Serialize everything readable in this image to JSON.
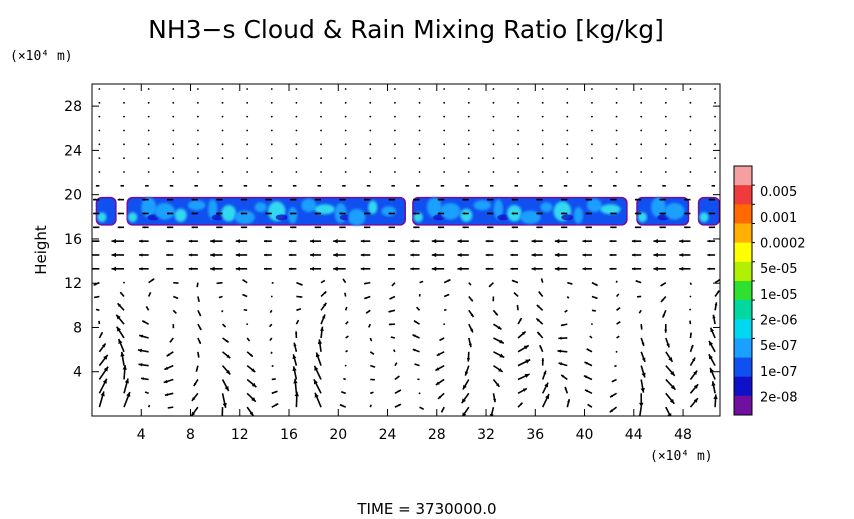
{
  "chart_data": {
    "type": "heatmap",
    "title": "NH3−s Cloud & Rain Mixing Ratio [kg/kg]",
    "ylabel": "Height",
    "y_unit": "(×10⁴ m)",
    "x_unit": "(×10⁴ m)",
    "footer": "TIME = 3730000.0",
    "xlim": [
      0,
      51
    ],
    "ylim": [
      0,
      30
    ],
    "x_ticks": [
      "4",
      "8",
      "12",
      "16",
      "20",
      "24",
      "28",
      "32",
      "36",
      "40",
      "44",
      "48"
    ],
    "y_ticks": [
      "4",
      "8",
      "12",
      "16",
      "20",
      "24",
      "28"
    ],
    "x_tick_values": [
      4,
      8,
      12,
      16,
      20,
      24,
      28,
      32,
      36,
      40,
      44,
      48
    ],
    "y_tick_values": [
      4,
      8,
      12,
      16,
      20,
      24,
      28
    ],
    "colorbar": {
      "labels": [
        "0.005",
        "0.001",
        "0.0002",
        "5e-05",
        "1e-05",
        "2e-06",
        "5e-07",
        "1e-07",
        "2e-08"
      ],
      "colors": [
        "#f4a0a0",
        "#ef3b3b",
        "#ff6a00",
        "#ffb000",
        "#ffff00",
        "#b0f000",
        "#30e030",
        "#00d8a0",
        "#00d8f0",
        "#1ca0ff",
        "#1050f0",
        "#1010c8",
        "#7010a0"
      ]
    },
    "cloud_layer": {
      "y_range": [
        17.2,
        19.8
      ],
      "segments": [
        [
          0.3,
          2.0
        ],
        [
          2.8,
          25.5
        ],
        [
          26.0,
          43.5
        ],
        [
          44.2,
          48.5
        ],
        [
          49.2,
          51.0
        ]
      ],
      "colors": {
        "edge": "#7010a0",
        "base": "#1050f0",
        "mid": "#1ca0ff",
        "core": "#30d8f0",
        "dark": "#1010c8"
      }
    },
    "wind_vectors": {
      "x_spacing": 2.0,
      "y_spacing": 1.25,
      "levels_above_cloud": "negligible dots",
      "near_cloud_base": "mostly westward (leftward) flow at 14-17",
      "lower_layer": "convective cells with strong updrafts/downdrafts near x=2, 10, 18, 32, 36, 46, 50"
    }
  }
}
